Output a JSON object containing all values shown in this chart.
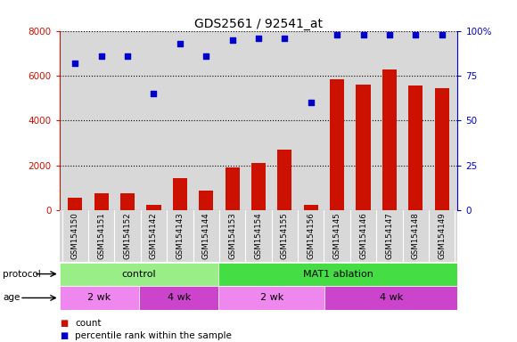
{
  "title": "GDS2561 / 92541_at",
  "samples": [
    "GSM154150",
    "GSM154151",
    "GSM154152",
    "GSM154142",
    "GSM154143",
    "GSM154144",
    "GSM154153",
    "GSM154154",
    "GSM154155",
    "GSM154156",
    "GSM154145",
    "GSM154146",
    "GSM154147",
    "GSM154148",
    "GSM154149"
  ],
  "counts": [
    550,
    780,
    750,
    260,
    1450,
    860,
    1920,
    2100,
    2720,
    240,
    5820,
    5600,
    6280,
    5560,
    5450
  ],
  "percentile": [
    82,
    86,
    86,
    65,
    93,
    86,
    95,
    96,
    96,
    60,
    98,
    98,
    98,
    98,
    98
  ],
  "bar_color": "#cc1100",
  "dot_color": "#0000cc",
  "ylim_left": [
    0,
    8000
  ],
  "ylim_right": [
    0,
    100
  ],
  "yticks_left": [
    0,
    2000,
    4000,
    6000,
    8000
  ],
  "ytick_labels_right": [
    "0",
    "25",
    "50",
    "75",
    "100%"
  ],
  "protocol_groups": [
    {
      "label": "control",
      "start": 0,
      "end": 6,
      "color": "#99ee88"
    },
    {
      "label": "MAT1 ablation",
      "start": 6,
      "end": 15,
      "color": "#44dd44"
    }
  ],
  "age_groups": [
    {
      "label": "2 wk",
      "start": 0,
      "end": 3,
      "color": "#ee88ee"
    },
    {
      "label": "4 wk",
      "start": 3,
      "end": 6,
      "color": "#cc44cc"
    },
    {
      "label": "2 wk",
      "start": 6,
      "end": 10,
      "color": "#ee88ee"
    },
    {
      "label": "4 wk",
      "start": 10,
      "end": 15,
      "color": "#cc44cc"
    }
  ],
  "legend_count_color": "#cc1100",
  "legend_dot_color": "#0000cc",
  "grid_color": "#000000",
  "axis_color_left": "#cc1100",
  "axis_color_right": "#0000cc",
  "bg_color": "#ffffff",
  "plot_bg_color": "#d8d8d8"
}
